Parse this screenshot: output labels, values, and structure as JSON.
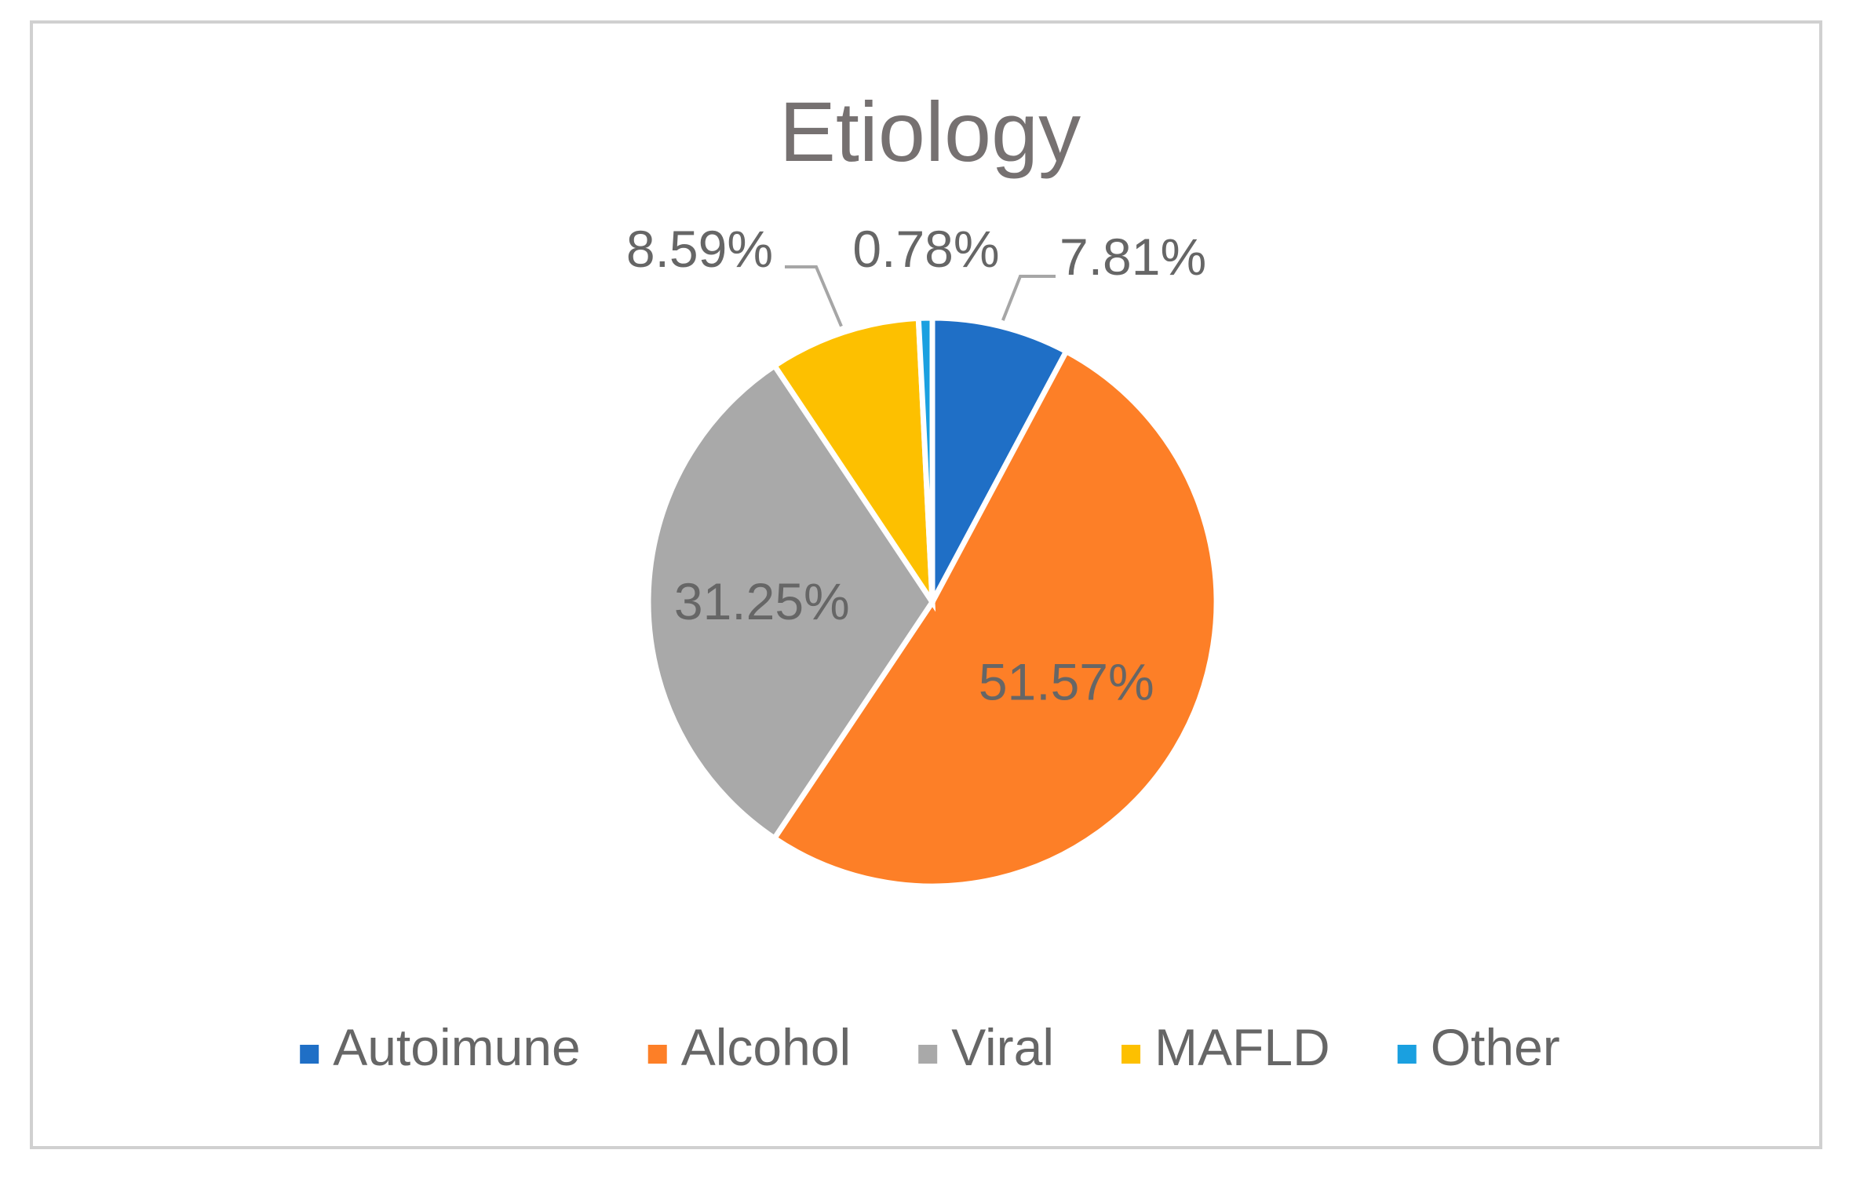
{
  "chart_data": {
    "type": "pie",
    "title": "Etiology",
    "categories": [
      "Autoimune",
      "Alcohol",
      "Viral",
      "MAFLD",
      "Other"
    ],
    "values": [
      7.81,
      51.57,
      31.25,
      8.59,
      0.78
    ],
    "labels": [
      "7.81%",
      "51.57%",
      "31.25%",
      "8.59%",
      "0.78%"
    ],
    "colors": [
      "#1f6fc6",
      "#fd7f27",
      "#a9a9a9",
      "#fdc000",
      "#1aa0e0"
    ],
    "start_angle_deg": 0,
    "direction": "clockwise",
    "legend_position": "bottom"
  }
}
